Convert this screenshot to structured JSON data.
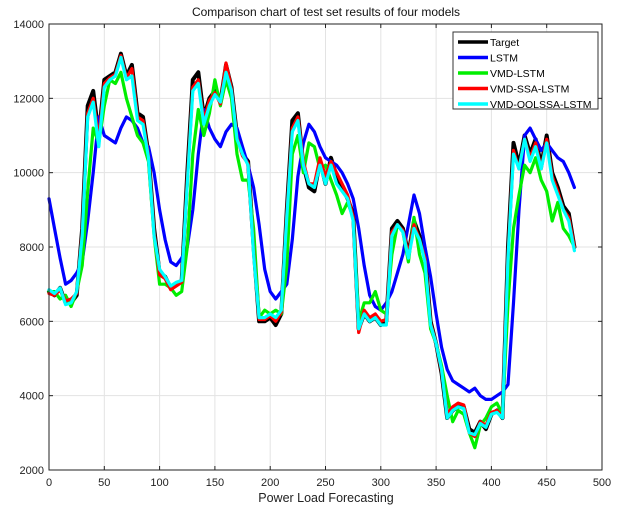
{
  "chart_data": {
    "type": "line",
    "title": "Comparison chart of test set results of four models",
    "xlabel": "Power Load Forecasting",
    "ylabel": "",
    "xlim": [
      0,
      500
    ],
    "ylim": [
      2000,
      14000
    ],
    "xticks": [
      "0",
      "50",
      "100",
      "150",
      "200",
      "250",
      "300",
      "350",
      "400",
      "450",
      "500"
    ],
    "yticks": [
      "2000",
      "4000",
      "6000",
      "8000",
      "10000",
      "12000",
      "14000"
    ],
    "grid": true,
    "legend_position": "top-right",
    "x_start": 0,
    "x_step": 5,
    "series": [
      {
        "name": "Target",
        "color": "#000000",
        "values": [
          6800,
          6700,
          6900,
          6500,
          6500,
          6700,
          8500,
          11800,
          12200,
          11000,
          12500,
          12600,
          12700,
          13200,
          12600,
          12900,
          11600,
          11500,
          10500,
          8500,
          7300,
          7200,
          6900,
          7000,
          7100,
          10000,
          12500,
          12700,
          11500,
          12000,
          12200,
          11900,
          12900,
          12300,
          11000,
          10500,
          10300,
          8000,
          6000,
          6000,
          6100,
          5900,
          6200,
          9000,
          11400,
          11600,
          10200,
          9600,
          9500,
          10300,
          9700,
          10400,
          9900,
          9600,
          9300,
          8900,
          5800,
          6200,
          6000,
          6100,
          5900,
          6000,
          8500,
          8700,
          8500,
          7800,
          8700,
          8300,
          7800,
          6000,
          5400,
          4600,
          3400,
          3600,
          3700,
          3700,
          3100,
          3000,
          3300,
          3100,
          3500,
          3600,
          3400,
          8000,
          10800,
          10200,
          11000,
          10500,
          10900,
          10200,
          11000,
          10000,
          9600,
          9100,
          8900,
          8000
        ]
      },
      {
        "name": "LSTM",
        "color": "#0000ff",
        "values": [
          9300,
          8500,
          7700,
          7000,
          7100,
          7300,
          7600,
          8700,
          10000,
          11500,
          11000,
          10900,
          10800,
          11200,
          11500,
          11400,
          11200,
          10800,
          10700,
          10000,
          9000,
          8200,
          7600,
          7500,
          7700,
          8000,
          9000,
          10500,
          11700,
          11200,
          10900,
          10700,
          11100,
          11300,
          11200,
          10700,
          10200,
          9600,
          8600,
          7400,
          6800,
          6600,
          6800,
          7000,
          8200,
          9900,
          10800,
          11300,
          11100,
          10700,
          10400,
          10300,
          10200,
          10000,
          9700,
          9300,
          8500,
          7500,
          6700,
          6400,
          6300,
          6500,
          6800,
          7300,
          7800,
          8600,
          9400,
          8900,
          8000,
          7200,
          6200,
          5300,
          4700,
          4400,
          4300,
          4200,
          4100,
          4200,
          4000,
          3900,
          3900,
          4000,
          4100,
          4300,
          6500,
          9000,
          11000,
          11200,
          10900,
          10600,
          10800,
          10600,
          10400,
          10300,
          10000,
          9600
        ]
      },
      {
        "name": "VMD-LSTM",
        "color": "#00ee00",
        "values": [
          6800,
          6800,
          6600,
          6700,
          6400,
          6800,
          7500,
          9500,
          11200,
          10800,
          11800,
          12500,
          12400,
          12700,
          12000,
          11500,
          11000,
          10800,
          10300,
          8300,
          7000,
          7000,
          6900,
          6700,
          6800,
          8000,
          10500,
          11700,
          11000,
          11600,
          12500,
          11800,
          12500,
          12000,
          10500,
          9800,
          9800,
          8500,
          6100,
          6300,
          6200,
          6300,
          6200,
          7500,
          10500,
          11000,
          10000,
          10800,
          10700,
          10100,
          10200,
          9800,
          9400,
          8900,
          9200,
          8800,
          6000,
          6500,
          6500,
          6800,
          6300,
          6200,
          7800,
          8600,
          8400,
          7600,
          8800,
          7800,
          7300,
          5800,
          5400,
          4800,
          4000,
          3300,
          3600,
          3500,
          3000,
          2600,
          3200,
          3400,
          3700,
          3800,
          3500,
          6500,
          8500,
          9400,
          10200,
          10000,
          10400,
          9800,
          9500,
          8700,
          9200,
          8500,
          8300,
          8000
        ]
      },
      {
        "name": "VMD-SSA-LSTM",
        "color": "#ff0000",
        "values": [
          6750,
          6700,
          6850,
          6550,
          6600,
          6750,
          8400,
          11600,
          12000,
          10900,
          12400,
          12550,
          12650,
          13150,
          12550,
          12800,
          11500,
          11400,
          10450,
          8400,
          7250,
          7150,
          6850,
          6950,
          7050,
          9800,
          12300,
          12500,
          11400,
          11950,
          12150,
          11850,
          12950,
          12250,
          10950,
          10450,
          10250,
          7900,
          6050,
          6050,
          6150,
          6000,
          6250,
          8900,
          11200,
          11500,
          10300,
          9700,
          9700,
          10400,
          9900,
          10300,
          10000,
          9700,
          9400,
          8800,
          5700,
          6300,
          6100,
          6200,
          6000,
          6050,
          8400,
          8600,
          8450,
          7800,
          8600,
          8200,
          7700,
          5950,
          5400,
          4650,
          3500,
          3700,
          3800,
          3750,
          3000,
          2900,
          3300,
          3200,
          3550,
          3600,
          3450,
          7800,
          10600,
          10100,
          10900,
          10400,
          10800,
          10100,
          10900,
          9900,
          9500,
          9000,
          8800,
          8000
        ]
      },
      {
        "name": "VMD-OOLSSA-LSTM",
        "color": "#00ffff",
        "values": [
          6850,
          6750,
          6900,
          6450,
          6500,
          6800,
          8300,
          11500,
          11900,
          10700,
          12300,
          12500,
          12600,
          13100,
          12500,
          12600,
          11400,
          11300,
          10400,
          8300,
          7400,
          7200,
          6950,
          7050,
          7100,
          9700,
          12200,
          12400,
          11300,
          11800,
          12100,
          11900,
          12700,
          12200,
          10900,
          10500,
          10200,
          7800,
          6100,
          6100,
          6200,
          6100,
          6300,
          8800,
          11100,
          11400,
          10200,
          9700,
          9600,
          10200,
          9700,
          10200,
          9700,
          9500,
          9300,
          8700,
          5800,
          6200,
          6000,
          6100,
          5900,
          5900,
          8300,
          8600,
          8400,
          7700,
          8500,
          8200,
          7600,
          5900,
          5400,
          4700,
          3400,
          3600,
          3700,
          3650,
          3000,
          2950,
          3250,
          3150,
          3500,
          3550,
          3400,
          7700,
          10500,
          10100,
          10900,
          10300,
          10700,
          10100,
          10800,
          9800,
          9400,
          9000,
          8700,
          7900
        ]
      }
    ]
  }
}
